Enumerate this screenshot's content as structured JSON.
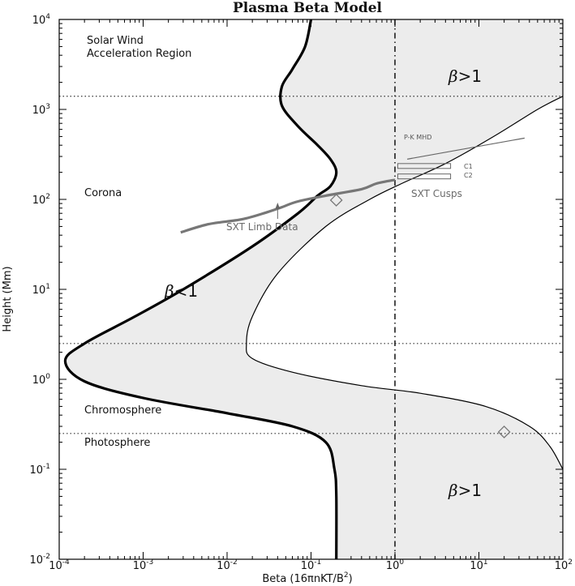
{
  "chart_data": {
    "type": "line",
    "title": "Plasma Beta Model",
    "xlabel_main": "Beta (16πnKT/B",
    "xlabel_sup": "2",
    "xlabel_close": ")",
    "ylabel": "Height (Mm)",
    "x_scale": "log",
    "y_scale": "log",
    "xlim": [
      0.0001,
      100
    ],
    "ylim": [
      0.01,
      10000
    ],
    "x_ticks": [
      {
        "base": "10",
        "exp": "-4"
      },
      {
        "base": "10",
        "exp": "-3"
      },
      {
        "base": "10",
        "exp": "-2"
      },
      {
        "base": "10",
        "exp": "-1"
      },
      {
        "base": "10",
        "exp": "0"
      },
      {
        "base": "10",
        "exp": "1"
      },
      {
        "base": "10",
        "exp": "2"
      }
    ],
    "y_ticks": [
      {
        "base": "10",
        "exp": "-2"
      },
      {
        "base": "10",
        "exp": "-1"
      },
      {
        "base": "10",
        "exp": "0"
      },
      {
        "base": "10",
        "exp": "1"
      },
      {
        "base": "10",
        "exp": "2"
      },
      {
        "base": "10",
        "exp": "3"
      },
      {
        "base": "10",
        "exp": "4"
      }
    ],
    "region_boundaries_height": [
      1400,
      2.5,
      0.25
    ],
    "beta_unity_line": 1,
    "region_labels": {
      "solar_wind_1": "Solar Wind",
      "solar_wind_2": "Acceleration Region",
      "corona": "Corona",
      "chromosphere": "Chromosphere",
      "photosphere": "Photosphere"
    },
    "beta_labels": {
      "symbol": "β",
      "gt": ">1",
      "lt": "<1"
    },
    "annotations": {
      "sxt_limb": "SXT Limb Data",
      "sxt_cusps": "SXT Cusps",
      "pk_mhd": "P-K MHD",
      "c1": "C1",
      "c2": "C2"
    },
    "series": [
      {
        "role": "left boundary (thick)",
        "points": [
          [
            0.2,
            0.01
          ],
          [
            0.2,
            0.05
          ],
          [
            0.19,
            0.1
          ],
          [
            0.15,
            0.2
          ],
          [
            0.06,
            0.3
          ],
          [
            0.01,
            0.42
          ],
          [
            0.001,
            0.62
          ],
          [
            0.0002,
            0.95
          ],
          [
            0.000118,
            1.6
          ],
          [
            0.0002,
            2.5
          ],
          [
            0.0008,
            5
          ],
          [
            0.003,
            10
          ],
          [
            0.02,
            30
          ],
          [
            0.07,
            70
          ],
          [
            0.12,
            110
          ],
          [
            0.17,
            140
          ],
          [
            0.2,
            200
          ],
          [
            0.17,
            280
          ],
          [
            0.12,
            400
          ],
          [
            0.07,
            650
          ],
          [
            0.045,
            1100
          ],
          [
            0.045,
            1800
          ],
          [
            0.06,
            2800
          ],
          [
            0.085,
            5000
          ],
          [
            0.1,
            10000
          ]
        ]
      },
      {
        "role": "right boundary (thin)",
        "points": [
          [
            100,
            0.1
          ],
          [
            70,
            0.18
          ],
          [
            40,
            0.3
          ],
          [
            12,
            0.5
          ],
          [
            2,
            0.7
          ],
          [
            0.4,
            0.85
          ],
          [
            0.06,
            1.2
          ],
          [
            0.02,
            1.7
          ],
          [
            0.017,
            2.5
          ],
          [
            0.02,
            5
          ],
          [
            0.04,
            15
          ],
          [
            0.15,
            50
          ],
          [
            0.5,
            100
          ],
          [
            1.2,
            150
          ],
          [
            4,
            250
          ],
          [
            15,
            500
          ],
          [
            50,
            1000
          ],
          [
            100,
            1400
          ]
        ]
      },
      {
        "role": "SXT limb data",
        "points": [
          [
            0.0028,
            43
          ],
          [
            0.006,
            53
          ],
          [
            0.015,
            60
          ],
          [
            0.03,
            72
          ],
          [
            0.045,
            82
          ],
          [
            0.07,
            95
          ],
          [
            0.15,
            110
          ],
          [
            0.4,
            130
          ],
          [
            0.6,
            150
          ],
          [
            1,
            165
          ]
        ]
      },
      {
        "role": "P-K MHD",
        "points": [
          [
            1.4,
            280
          ],
          [
            35,
            480
          ]
        ]
      },
      {
        "role": "markers (diamond)",
        "points": [
          [
            0.2,
            98
          ],
          [
            20,
            0.26
          ]
        ]
      }
    ]
  }
}
